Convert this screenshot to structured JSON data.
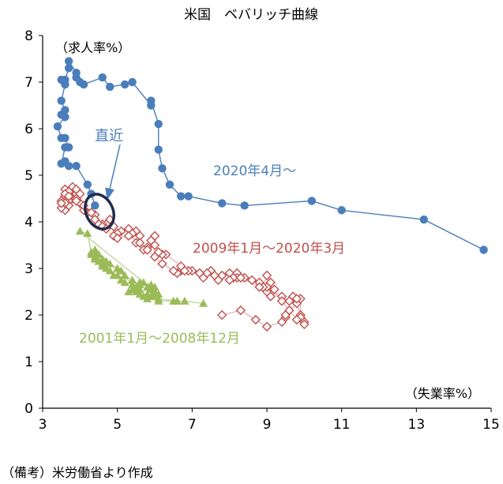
{
  "chart_data": {
    "type": "scatter",
    "title": "米国　ベバリッチ曲線",
    "xlabel": "（失業率%）",
    "ylabel": "（求人率%）",
    "xlim": [
      3,
      15
    ],
    "ylim": [
      0,
      8
    ],
    "xticks": [
      3,
      5,
      7,
      9,
      11,
      13,
      15
    ],
    "yticks": [
      0,
      1,
      2,
      3,
      4,
      5,
      6,
      7,
      8
    ],
    "grid": false,
    "series": [
      {
        "name": "2020年4月～",
        "label": "2020年4月～",
        "color": "#4a7ebb",
        "marker": "circle",
        "connected": true,
        "points": [
          [
            4.4,
            4.35
          ],
          [
            4.3,
            4.6
          ],
          [
            4.2,
            4.8
          ],
          [
            3.9,
            5.2
          ],
          [
            3.7,
            5.2
          ],
          [
            3.6,
            5.3
          ],
          [
            3.5,
            5.25
          ],
          [
            3.6,
            5.6
          ],
          [
            3.7,
            5.6
          ],
          [
            3.6,
            5.8
          ],
          [
            3.5,
            5.8
          ],
          [
            3.4,
            6.05
          ],
          [
            3.6,
            6.25
          ],
          [
            3.5,
            6.3
          ],
          [
            3.6,
            6.4
          ],
          [
            3.5,
            6.6
          ],
          [
            3.6,
            6.95
          ],
          [
            3.5,
            7.05
          ],
          [
            3.6,
            7.05
          ],
          [
            3.7,
            7.3
          ],
          [
            3.7,
            7.45
          ],
          [
            3.9,
            7.2
          ],
          [
            3.9,
            7.1
          ],
          [
            4.0,
            7.0
          ],
          [
            4.1,
            6.95
          ],
          [
            4.6,
            7.1
          ],
          [
            4.8,
            6.9
          ],
          [
            5.2,
            6.95
          ],
          [
            5.4,
            7.0
          ],
          [
            5.9,
            6.5
          ],
          [
            5.9,
            6.6
          ],
          [
            6.1,
            6.1
          ],
          [
            6.1,
            5.55
          ],
          [
            6.2,
            5.15
          ],
          [
            6.4,
            4.8
          ],
          [
            6.7,
            4.55
          ],
          [
            6.9,
            4.55
          ],
          [
            7.8,
            4.4
          ],
          [
            8.4,
            4.35
          ],
          [
            10.2,
            4.45
          ],
          [
            11.0,
            4.25
          ],
          [
            13.2,
            4.05
          ],
          [
            14.8,
            3.4
          ]
        ]
      },
      {
        "name": "2009年1月～2020年3月",
        "label": "2009年1月～2020年3月",
        "color": "#c0504d",
        "marker": "diamond",
        "connected": true,
        "points": [
          [
            7.8,
            2.0
          ],
          [
            8.3,
            2.1
          ],
          [
            8.7,
            1.9
          ],
          [
            9.0,
            1.75
          ],
          [
            9.4,
            1.85
          ],
          [
            9.5,
            1.95
          ],
          [
            9.5,
            2.0
          ],
          [
            9.6,
            2.1
          ],
          [
            9.8,
            2.25
          ],
          [
            9.9,
            2.0
          ],
          [
            10.0,
            1.85
          ],
          [
            9.9,
            1.95
          ],
          [
            9.9,
            2.35
          ],
          [
            9.7,
            2.4
          ],
          [
            9.8,
            2.35
          ],
          [
            9.6,
            2.3
          ],
          [
            9.4,
            2.4
          ],
          [
            9.0,
            2.5
          ],
          [
            9.1,
            2.4
          ],
          [
            9.0,
            2.6
          ],
          [
            9.1,
            2.7
          ],
          [
            9.0,
            2.85
          ],
          [
            8.9,
            2.6
          ],
          [
            8.8,
            2.7
          ],
          [
            8.6,
            2.75
          ],
          [
            8.4,
            2.8
          ],
          [
            8.2,
            2.9
          ],
          [
            8.2,
            2.8
          ],
          [
            8.1,
            2.8
          ],
          [
            8.0,
            2.9
          ],
          [
            7.8,
            2.85
          ],
          [
            7.7,
            2.75
          ],
          [
            7.5,
            2.95
          ],
          [
            7.3,
            2.8
          ],
          [
            7.4,
            2.9
          ],
          [
            7.2,
            2.9
          ],
          [
            7.0,
            2.95
          ],
          [
            6.9,
            2.95
          ],
          [
            6.7,
            2.95
          ],
          [
            6.6,
            2.9
          ],
          [
            6.7,
            3.05
          ],
          [
            6.3,
            3.3
          ],
          [
            6.2,
            3.3
          ],
          [
            6.1,
            3.35
          ],
          [
            6.0,
            3.5
          ],
          [
            6.0,
            3.7
          ],
          [
            5.9,
            3.6
          ],
          [
            5.8,
            3.45
          ],
          [
            5.7,
            3.4
          ],
          [
            5.5,
            3.55
          ],
          [
            5.6,
            3.7
          ],
          [
            5.5,
            3.8
          ],
          [
            5.4,
            3.75
          ],
          [
            5.3,
            3.85
          ],
          [
            5.1,
            3.8
          ],
          [
            5.0,
            3.75
          ],
          [
            4.9,
            3.9
          ],
          [
            4.8,
            4.05
          ],
          [
            4.7,
            3.95
          ],
          [
            4.6,
            3.95
          ],
          [
            4.5,
            3.95
          ],
          [
            4.4,
            4.15
          ],
          [
            4.2,
            4.2
          ],
          [
            4.1,
            4.25
          ],
          [
            4.0,
            4.4
          ],
          [
            3.9,
            4.6
          ],
          [
            3.8,
            4.5
          ],
          [
            3.7,
            4.45
          ],
          [
            3.6,
            4.55
          ],
          [
            3.5,
            4.45
          ],
          [
            3.6,
            4.7
          ],
          [
            3.7,
            4.65
          ],
          [
            3.8,
            4.75
          ],
          [
            3.9,
            4.7
          ],
          [
            4.0,
            4.6
          ],
          [
            3.9,
            4.5
          ],
          [
            3.7,
            4.35
          ],
          [
            3.6,
            4.4
          ],
          [
            3.6,
            4.25
          ],
          [
            3.5,
            4.3
          ],
          [
            3.5,
            4.4
          ],
          [
            3.6,
            4.6
          ],
          [
            3.7,
            4.55
          ],
          [
            3.9,
            4.45
          ],
          [
            4.1,
            4.35
          ],
          [
            4.3,
            4.2
          ],
          [
            4.4,
            4.05
          ],
          [
            4.6,
            3.9
          ],
          [
            4.7,
            3.85
          ],
          [
            4.9,
            3.7
          ],
          [
            5.0,
            3.65
          ],
          [
            5.3,
            3.7
          ],
          [
            5.6,
            3.55
          ],
          [
            5.8,
            3.4
          ],
          [
            6.0,
            3.25
          ],
          [
            6.2,
            3.1
          ],
          [
            6.5,
            2.95
          ],
          [
            6.8,
            2.95
          ],
          [
            7.2,
            2.9
          ],
          [
            7.6,
            2.85
          ],
          [
            8.0,
            2.75
          ],
          [
            8.3,
            2.8
          ],
          [
            8.8,
            2.6
          ],
          [
            9.2,
            2.55
          ],
          [
            9.4,
            2.3
          ],
          [
            9.8,
            1.9
          ],
          [
            10.0,
            1.8
          ]
        ]
      },
      {
        "name": "2001年1月～2008年12月",
        "label": "2001年1月～2008年12月",
        "color": "#9bbb59",
        "marker": "triangle",
        "connected": true,
        "points": [
          [
            7.3,
            2.25
          ],
          [
            6.8,
            2.3
          ],
          [
            6.5,
            2.3
          ],
          [
            6.1,
            2.3
          ],
          [
            6.0,
            2.4
          ],
          [
            5.9,
            2.4
          ],
          [
            5.8,
            2.45
          ],
          [
            5.8,
            2.35
          ],
          [
            5.7,
            2.4
          ],
          [
            5.6,
            2.45
          ],
          [
            5.6,
            2.55
          ],
          [
            5.5,
            2.5
          ],
          [
            5.4,
            2.55
          ],
          [
            5.3,
            2.5
          ],
          [
            5.4,
            2.65
          ],
          [
            5.2,
            2.7
          ],
          [
            5.1,
            2.75
          ],
          [
            5.0,
            2.85
          ],
          [
            4.9,
            2.85
          ],
          [
            4.8,
            2.95
          ],
          [
            4.7,
            3.0
          ],
          [
            4.6,
            3.05
          ],
          [
            4.6,
            3.1
          ],
          [
            4.5,
            3.15
          ],
          [
            4.4,
            3.2
          ],
          [
            4.4,
            3.35
          ],
          [
            4.3,
            3.3
          ],
          [
            4.4,
            3.25
          ],
          [
            4.5,
            3.3
          ],
          [
            4.6,
            3.2
          ],
          [
            4.7,
            3.15
          ],
          [
            4.8,
            3.1
          ],
          [
            5.0,
            3.0
          ],
          [
            5.1,
            2.95
          ],
          [
            5.2,
            2.85
          ],
          [
            5.4,
            2.75
          ],
          [
            5.6,
            2.65
          ],
          [
            5.7,
            2.7
          ],
          [
            5.8,
            2.6
          ],
          [
            5.9,
            2.55
          ],
          [
            6.0,
            2.5
          ],
          [
            6.1,
            2.45
          ],
          [
            4.0,
            3.8
          ],
          [
            4.2,
            3.75
          ],
          [
            4.3,
            3.35
          ],
          [
            4.4,
            3.4
          ],
          [
            5.5,
            2.6
          ],
          [
            5.6,
            2.7
          ],
          [
            5.9,
            2.65
          ],
          [
            6.0,
            2.6
          ],
          [
            6.1,
            2.35
          ],
          [
            6.6,
            2.3
          ]
        ]
      }
    ],
    "annotations": [
      {
        "text": "直近",
        "color": "#4a7ebb",
        "target": [
          4.5,
          4.25
        ]
      }
    ]
  },
  "note": "（備考）米労働省より作成"
}
